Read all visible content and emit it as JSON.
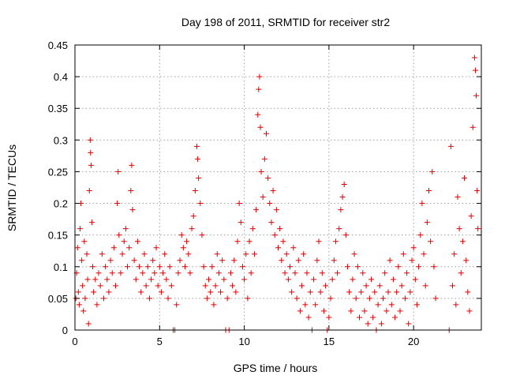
{
  "chart_data": {
    "type": "scatter",
    "title": "Day 198 of 2011, SRMTID for receiver str2",
    "xlabel": "GPS time / hours",
    "ylabel": "SRMTID / TECUs",
    "xlim": [
      0,
      24
    ],
    "ylim": [
      0,
      0.45
    ],
    "xticks": [
      0,
      5,
      10,
      15,
      20
    ],
    "xtick_labels": [
      "0",
      "5",
      "10",
      "15",
      "20"
    ],
    "yticks": [
      0,
      0.05,
      0.1,
      0.15,
      0.2,
      0.25,
      0.3,
      0.35,
      0.4,
      0.45
    ],
    "ytick_labels": [
      "0",
      "0.05",
      "0.1",
      "0.15",
      "0.2",
      "0.25",
      "0.3",
      "0.35",
      "0.4",
      "0.45"
    ],
    "grid": true,
    "marker": "+",
    "series": [
      {
        "color": "#e00000",
        "points": [
          [
            0.05,
            0.05
          ],
          [
            0.1,
            0.09
          ],
          [
            0.15,
            0.13
          ],
          [
            0.2,
            0.06
          ],
          [
            0.25,
            0.04
          ],
          [
            0.3,
            0.16
          ],
          [
            0.35,
            0.2
          ],
          [
            0.4,
            0.11
          ],
          [
            0.45,
            0.07
          ],
          [
            0.5,
            0.03
          ],
          [
            0.55,
            0.14
          ],
          [
            0.6,
            0.05
          ],
          [
            0.7,
            0.12
          ],
          [
            0.75,
            0.08
          ],
          [
            0.8,
            0.01
          ],
          [
            0.85,
            0.22
          ],
          [
            0.9,
            0.3
          ],
          [
            0.92,
            0.28
          ],
          [
            0.95,
            0.26
          ],
          [
            1.0,
            0.17
          ],
          [
            1.05,
            0.1
          ],
          [
            1.1,
            0.06
          ],
          [
            1.2,
            0.08
          ],
          [
            1.3,
            0.04
          ],
          [
            1.4,
            0.09
          ],
          [
            1.5,
            0.07
          ],
          [
            1.6,
            0.12
          ],
          [
            1.7,
            0.05
          ],
          [
            1.8,
            0.1
          ],
          [
            1.9,
            0.08
          ],
          [
            2.0,
            0.06
          ],
          [
            2.1,
            0.11
          ],
          [
            2.2,
            0.09
          ],
          [
            2.3,
            0.13
          ],
          [
            2.4,
            0.07
          ],
          [
            2.5,
            0.2
          ],
          [
            2.55,
            0.25
          ],
          [
            2.6,
            0.15
          ],
          [
            2.7,
            0.09
          ],
          [
            2.8,
            0.12
          ],
          [
            2.9,
            0.14
          ],
          [
            3.0,
            0.16
          ],
          [
            3.1,
            0.1
          ],
          [
            3.2,
            0.13
          ],
          [
            3.3,
            0.22
          ],
          [
            3.35,
            0.26
          ],
          [
            3.4,
            0.19
          ],
          [
            3.5,
            0.11
          ],
          [
            3.6,
            0.08
          ],
          [
            3.7,
            0.14
          ],
          [
            3.8,
            0.1
          ],
          [
            3.9,
            0.06
          ],
          [
            4.0,
            0.09
          ],
          [
            4.1,
            0.12
          ],
          [
            4.2,
            0.07
          ],
          [
            4.3,
            0.1
          ],
          [
            4.4,
            0.05
          ],
          [
            4.5,
            0.08
          ],
          [
            4.6,
            0.11
          ],
          [
            4.7,
            0.09
          ],
          [
            4.8,
            0.13
          ],
          [
            4.9,
            0.07
          ],
          [
            5.0,
            0.1
          ],
          [
            5.1,
            0.06
          ],
          [
            5.2,
            0.09
          ],
          [
            5.3,
            0.12
          ],
          [
            5.4,
            0.08
          ],
          [
            5.5,
            0.05
          ],
          [
            5.6,
            0.1
          ],
          [
            5.7,
            0.07
          ],
          [
            5.8,
            0.0
          ],
          [
            5.9,
            0.0
          ],
          [
            6.0,
            0.04
          ],
          [
            6.1,
            0.09
          ],
          [
            6.2,
            0.11
          ],
          [
            6.3,
            0.15
          ],
          [
            6.4,
            0.13
          ],
          [
            6.5,
            0.1
          ],
          [
            6.6,
            0.14
          ],
          [
            6.7,
            0.12
          ],
          [
            6.8,
            0.09
          ],
          [
            6.9,
            0.16
          ],
          [
            7.0,
            0.18
          ],
          [
            7.1,
            0.22
          ],
          [
            7.2,
            0.29
          ],
          [
            7.25,
            0.27
          ],
          [
            7.3,
            0.24
          ],
          [
            7.4,
            0.2
          ],
          [
            7.5,
            0.15
          ],
          [
            7.6,
            0.1
          ],
          [
            7.7,
            0.07
          ],
          [
            7.8,
            0.05
          ],
          [
            7.9,
            0.08
          ],
          [
            8.0,
            0.06
          ],
          [
            8.1,
            0.1
          ],
          [
            8.2,
            0.04
          ],
          [
            8.3,
            0.07
          ],
          [
            8.4,
            0.12
          ],
          [
            8.5,
            0.09
          ],
          [
            8.6,
            0.06
          ],
          [
            8.7,
            0.11
          ],
          [
            8.8,
            0.08
          ],
          [
            8.9,
            0.0
          ],
          [
            9.0,
            0.05
          ],
          [
            9.1,
            0.0
          ],
          [
            9.2,
            0.09
          ],
          [
            9.3,
            0.07
          ],
          [
            9.4,
            0.11
          ],
          [
            9.5,
            0.06
          ],
          [
            9.6,
            0.14
          ],
          [
            9.7,
            0.2
          ],
          [
            9.8,
            0.17
          ],
          [
            9.9,
            0.1
          ],
          [
            10.0,
            0.08
          ],
          [
            10.1,
            0.12
          ],
          [
            10.2,
            0.05
          ],
          [
            10.3,
            0.14
          ],
          [
            10.4,
            0.09
          ],
          [
            10.5,
            0.16
          ],
          [
            10.6,
            0.12
          ],
          [
            10.7,
            0.19
          ],
          [
            10.8,
            0.34
          ],
          [
            10.85,
            0.38
          ],
          [
            10.9,
            0.4
          ],
          [
            10.95,
            0.32
          ],
          [
            11.0,
            0.25
          ],
          [
            11.1,
            0.21
          ],
          [
            11.2,
            0.27
          ],
          [
            11.3,
            0.31
          ],
          [
            11.4,
            0.24
          ],
          [
            11.5,
            0.2
          ],
          [
            11.6,
            0.17
          ],
          [
            11.7,
            0.22
          ],
          [
            11.8,
            0.15
          ],
          [
            11.9,
            0.19
          ],
          [
            12.0,
            0.13
          ],
          [
            12.1,
            0.16
          ],
          [
            12.2,
            0.11
          ],
          [
            12.3,
            0.14
          ],
          [
            12.4,
            0.09
          ],
          [
            12.5,
            0.12
          ],
          [
            12.6,
            0.08
          ],
          [
            12.7,
            0.1
          ],
          [
            12.8,
            0.06
          ],
          [
            12.9,
            0.13
          ],
          [
            13.0,
            0.09
          ],
          [
            13.1,
            0.05
          ],
          [
            13.2,
            0.11
          ],
          [
            13.3,
            0.03
          ],
          [
            13.4,
            0.07
          ],
          [
            13.5,
            0.12
          ],
          [
            13.6,
            0.04
          ],
          [
            13.7,
            0.09
          ],
          [
            13.8,
            0.02
          ],
          [
            13.9,
            0.06
          ],
          [
            14.0,
            0.0
          ],
          [
            14.1,
            0.08
          ],
          [
            14.2,
            0.04
          ],
          [
            14.3,
            0.11
          ],
          [
            14.4,
            0.14
          ],
          [
            14.5,
            0.06
          ],
          [
            14.6,
            0.09
          ],
          [
            14.7,
            0.03
          ],
          [
            14.8,
            0.07
          ],
          [
            14.9,
            0.0
          ],
          [
            15.0,
            0.02
          ],
          [
            15.1,
            0.05
          ],
          [
            15.2,
            0.08
          ],
          [
            15.3,
            0.11
          ],
          [
            15.4,
            0.14
          ],
          [
            15.5,
            0.09
          ],
          [
            15.6,
            0.16
          ],
          [
            15.7,
            0.19
          ],
          [
            15.8,
            0.21
          ],
          [
            15.9,
            0.23
          ],
          [
            16.0,
            0.15
          ],
          [
            16.1,
            0.1
          ],
          [
            16.2,
            0.06
          ],
          [
            16.3,
            0.03
          ],
          [
            16.4,
            0.08
          ],
          [
            16.5,
            0.12
          ],
          [
            16.6,
            0.05
          ],
          [
            16.7,
            0.1
          ],
          [
            16.8,
            0.02
          ],
          [
            16.9,
            0.06
          ],
          [
            17.0,
            0.09
          ],
          [
            17.1,
            0.03
          ],
          [
            17.2,
            0.07
          ],
          [
            17.3,
            0.01
          ],
          [
            17.4,
            0.05
          ],
          [
            17.5,
            0.08
          ],
          [
            17.6,
            0.02
          ],
          [
            17.7,
            0.06
          ],
          [
            17.8,
            0.0
          ],
          [
            17.9,
            0.04
          ],
          [
            18.0,
            0.07
          ],
          [
            18.1,
            0.01
          ],
          [
            18.2,
            0.05
          ],
          [
            18.3,
            0.09
          ],
          [
            18.4,
            0.03
          ],
          [
            18.5,
            0.06
          ],
          [
            18.6,
            0.11
          ],
          [
            18.7,
            0.04
          ],
          [
            18.8,
            0.08
          ],
          [
            18.9,
            0.02
          ],
          [
            19.0,
            0.06
          ],
          [
            19.1,
            0.1
          ],
          [
            19.2,
            0.03
          ],
          [
            19.3,
            0.07
          ],
          [
            19.4,
            0.12
          ],
          [
            19.5,
            0.05
          ],
          [
            19.6,
            0.09
          ],
          [
            19.7,
            0.01
          ],
          [
            19.8,
            0.06
          ],
          [
            19.9,
            0.11
          ],
          [
            20.0,
            0.13
          ],
          [
            20.1,
            0.08
          ],
          [
            20.2,
            0.04
          ],
          [
            20.3,
            0.1
          ],
          [
            20.4,
            0.15
          ],
          [
            20.5,
            0.2
          ],
          [
            20.6,
            0.12
          ],
          [
            20.7,
            0.07
          ],
          [
            20.8,
            0.17
          ],
          [
            20.9,
            0.22
          ],
          [
            21.0,
            0.14
          ],
          [
            21.1,
            0.25
          ],
          [
            21.2,
            0.1
          ],
          [
            21.3,
            0.05
          ],
          [
            22.1,
            0.0
          ],
          [
            22.2,
            0.29
          ],
          [
            22.3,
            0.07
          ],
          [
            22.4,
            0.12
          ],
          [
            22.5,
            0.04
          ],
          [
            22.6,
            0.21
          ],
          [
            22.7,
            0.16
          ],
          [
            22.8,
            0.09
          ],
          [
            22.9,
            0.14
          ],
          [
            23.0,
            0.24
          ],
          [
            23.1,
            0.11
          ],
          [
            23.2,
            0.06
          ],
          [
            23.3,
            0.03
          ],
          [
            23.4,
            0.18
          ],
          [
            23.5,
            0.32
          ],
          [
            23.6,
            0.43
          ],
          [
            23.65,
            0.41
          ],
          [
            23.7,
            0.37
          ],
          [
            23.75,
            0.22
          ],
          [
            23.8,
            0.16
          ]
        ]
      }
    ]
  }
}
